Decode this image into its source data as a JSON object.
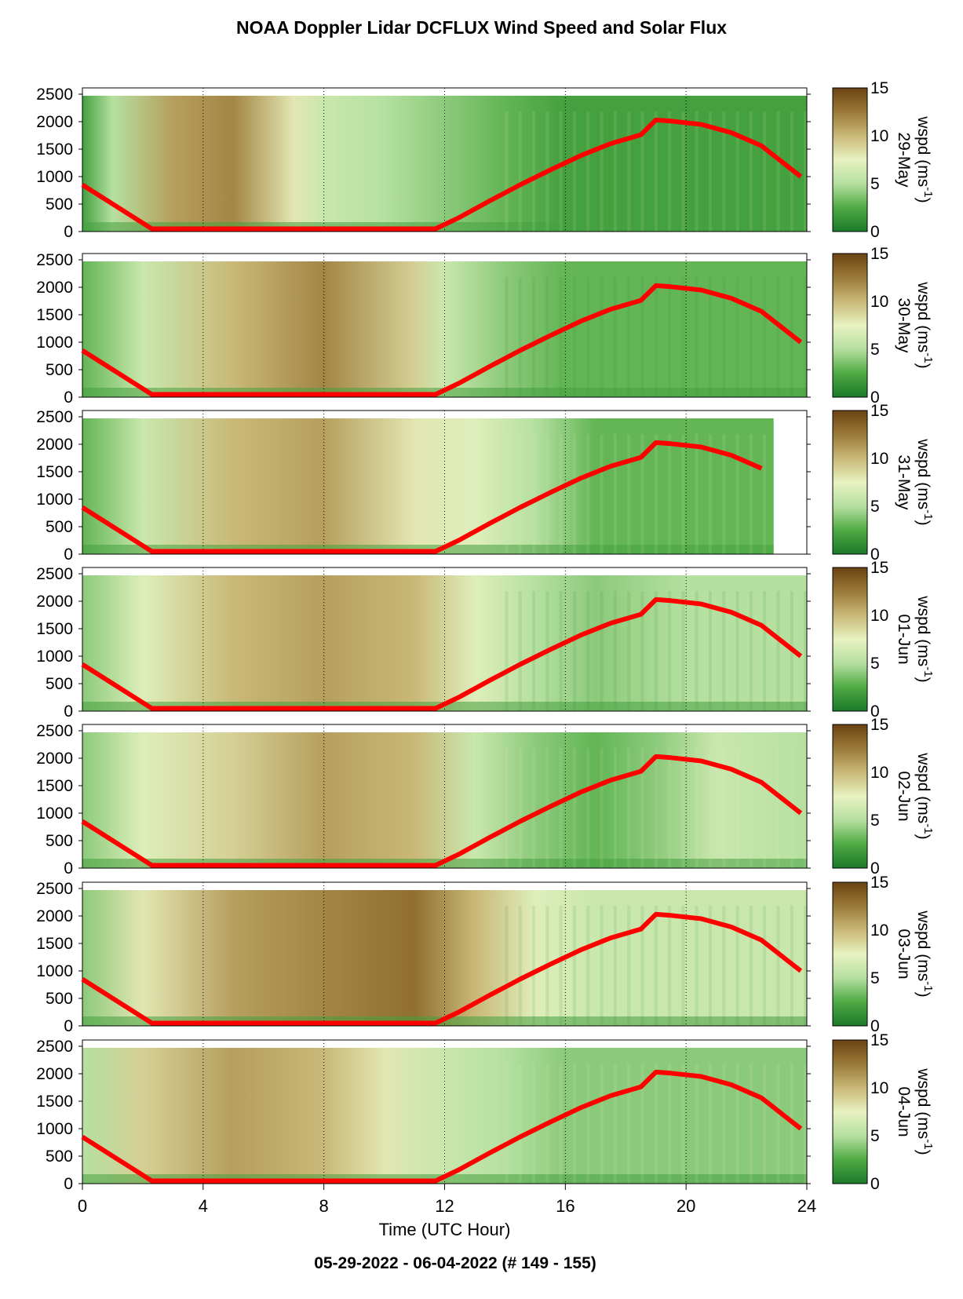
{
  "title": "NOAA Doppler Lidar DCFLUX Wind Speed and Solar Flux",
  "footer": "05-29-2022 - 06-04-2022   (# 149 - 155)",
  "chart_data": {
    "type": "heatmap",
    "xlabel": "Time (UTC Hour)",
    "xlim": [
      0,
      24
    ],
    "xticks": [
      "0",
      "4",
      "8",
      "12",
      "16",
      "20",
      "24"
    ],
    "ylim": [
      0,
      2500
    ],
    "yticks": [
      "0",
      "500",
      "1000",
      "1500",
      "2000",
      "2500"
    ],
    "colorbar": {
      "label": "wspd (ms",
      "unit_exponent": "-1",
      "unit_close": ")",
      "range": [
        0,
        15
      ],
      "ticks": [
        "0",
        "5",
        "10",
        "15"
      ],
      "colors": [
        "#1b7a2a",
        "#4faa44",
        "#b5e0a0",
        "#e8f2c0",
        "#c9b878",
        "#9a7a38",
        "#6a4312"
      ]
    },
    "solar_flux_color": "#ff0000",
    "panels": [
      {
        "label": "29-May",
        "data_end_hour": 24,
        "profile": [
          [
            0,
            2
          ],
          [
            1,
            5
          ],
          [
            3,
            11
          ],
          [
            5,
            12
          ],
          [
            7,
            8
          ],
          [
            8,
            6
          ],
          [
            10,
            5
          ],
          [
            12,
            4
          ],
          [
            14,
            3
          ],
          [
            16,
            2
          ],
          [
            20,
            2
          ],
          [
            24,
            2
          ]
        ]
      },
      {
        "label": "30-May",
        "data_end_hour": 24,
        "profile": [
          [
            0,
            3
          ],
          [
            2,
            6
          ],
          [
            5,
            10
          ],
          [
            8,
            12
          ],
          [
            11,
            9
          ],
          [
            12,
            6
          ],
          [
            14,
            4
          ],
          [
            16,
            3
          ],
          [
            20,
            3
          ],
          [
            24,
            3
          ]
        ]
      },
      {
        "label": "31-May",
        "data_end_hour": 22.9,
        "profile": [
          [
            0,
            3
          ],
          [
            2,
            6
          ],
          [
            5,
            10
          ],
          [
            8,
            11
          ],
          [
            11,
            8
          ],
          [
            13,
            7
          ],
          [
            15,
            5
          ],
          [
            17,
            3
          ],
          [
            20,
            3
          ],
          [
            23,
            3
          ]
        ]
      },
      {
        "label": "01-Jun",
        "data_end_hour": 24,
        "profile": [
          [
            0,
            4
          ],
          [
            2,
            7
          ],
          [
            5,
            10
          ],
          [
            8,
            11
          ],
          [
            11,
            10
          ],
          [
            13,
            7
          ],
          [
            15,
            5
          ],
          [
            17,
            4
          ],
          [
            20,
            5
          ],
          [
            24,
            5
          ]
        ]
      },
      {
        "label": "02-Jun",
        "data_end_hour": 24,
        "profile": [
          [
            0,
            4
          ],
          [
            2,
            7
          ],
          [
            5,
            9
          ],
          [
            8,
            11
          ],
          [
            11,
            10
          ],
          [
            13,
            6
          ],
          [
            15,
            4
          ],
          [
            17,
            3
          ],
          [
            19,
            4
          ],
          [
            21,
            6
          ],
          [
            24,
            5
          ]
        ]
      },
      {
        "label": "03-Jun",
        "data_end_hour": 24,
        "profile": [
          [
            0,
            4
          ],
          [
            2,
            8
          ],
          [
            5,
            11
          ],
          [
            8,
            12
          ],
          [
            11,
            13
          ],
          [
            13,
            10
          ],
          [
            15,
            7
          ],
          [
            17,
            6
          ],
          [
            20,
            6
          ],
          [
            24,
            6
          ]
        ]
      },
      {
        "label": "04-Jun",
        "data_end_hour": 24,
        "profile": [
          [
            0,
            5
          ],
          [
            2,
            9
          ],
          [
            5,
            11
          ],
          [
            8,
            10
          ],
          [
            10,
            8
          ],
          [
            12,
            6
          ],
          [
            14,
            5
          ],
          [
            16,
            4
          ],
          [
            20,
            4
          ],
          [
            24,
            4
          ]
        ]
      }
    ],
    "solar_flux_curve": {
      "x": [
        0,
        2.3,
        11.7,
        12.5,
        13.5,
        14.5,
        15.5,
        16.5,
        17.5,
        18.5,
        19.0,
        19.5,
        20.5,
        21.5,
        22.5,
        23.8
      ],
      "y": [
        850,
        50,
        50,
        260,
        560,
        850,
        1120,
        1380,
        1600,
        1760,
        2030,
        2010,
        1950,
        1800,
        1560,
        1000
      ]
    }
  }
}
